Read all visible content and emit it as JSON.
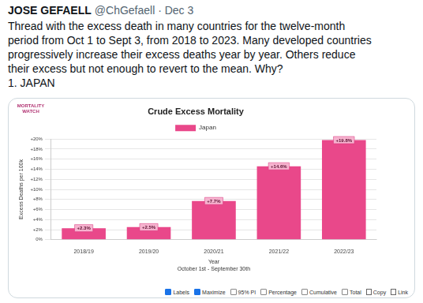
{
  "tweet": {
    "author": "JOSE GEFAELL",
    "meta": "@ChGefaell · Dec 3",
    "text_lines": [
      "Thread with the excess death in many countries for the twelve-month",
      "period from Oct 1 to Sept 3, from 2018 to 2023. Many developed countries",
      "progressively increase their excess deaths year by year. Others reduce",
      "their excess but not enough to revert to the mean. Why?",
      "1. JAPAN"
    ]
  },
  "chart_data": {
    "type": "bar",
    "logo": "MORTALITY WATCH",
    "title": "Crude Excess Mortality",
    "categories": [
      "2018/19",
      "2019/20",
      "2020/21",
      "2021/22",
      "2022/23"
    ],
    "series": [
      {
        "name": "Japan",
        "color": "#e9488a",
        "values": [
          2.3,
          2.5,
          7.7,
          14.6,
          19.8
        ],
        "value_labels": [
          "+2.3%",
          "+2.5%",
          "+7.7%",
          "+14.6%",
          "+19.8%"
        ]
      }
    ],
    "x_label": "Year",
    "x_subtitle": "October 1st - September 30th",
    "y_label": "Excess Deaths per 100k",
    "ylim": [
      0,
      20
    ],
    "yticks": [
      {
        "value": 0,
        "label": "0%"
      },
      {
        "value": 2,
        "label": "+2%"
      },
      {
        "value": 4,
        "label": "+4%"
      },
      {
        "value": 6,
        "label": "+6%"
      },
      {
        "value": 8,
        "label": "+8%"
      },
      {
        "value": 10,
        "label": "+10%"
      },
      {
        "value": 12,
        "label": "+12%"
      },
      {
        "value": 14,
        "label": "+14%"
      },
      {
        "value": 16,
        "label": "+16%"
      },
      {
        "value": 18,
        "label": "+18%"
      },
      {
        "value": 20,
        "label": "+20%"
      }
    ],
    "grid": true,
    "legend": "top",
    "data_labels": true
  },
  "controls": [
    {
      "label": "Labels",
      "checked": true
    },
    {
      "label": "Maximize",
      "checked": true
    },
    {
      "label": "95% PI",
      "checked": false
    },
    {
      "label": "Percentage",
      "checked": false
    },
    {
      "label": "Cumulative",
      "checked": false
    },
    {
      "label": "Total",
      "checked": false
    },
    {
      "label": "Copy"
    },
    {
      "label": "Link"
    }
  ]
}
